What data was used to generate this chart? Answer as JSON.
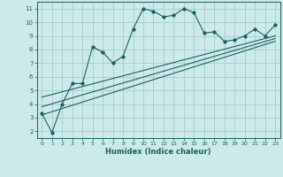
{
  "xlabel": "Humidex (Indice chaleur)",
  "bg_color": "#cceaea",
  "grid_color": "#aacccc",
  "line_color": "#1a6060",
  "xlim": [
    -0.5,
    23.5
  ],
  "ylim": [
    1.5,
    11.5
  ],
  "xticks": [
    0,
    1,
    2,
    3,
    4,
    5,
    6,
    7,
    8,
    9,
    10,
    11,
    12,
    13,
    14,
    15,
    16,
    17,
    18,
    19,
    20,
    21,
    22,
    23
  ],
  "yticks": [
    2,
    3,
    4,
    5,
    6,
    7,
    8,
    9,
    10,
    11
  ],
  "main_x": [
    0,
    1,
    2,
    3,
    4,
    5,
    6,
    7,
    8,
    9,
    10,
    11,
    12,
    13,
    14,
    15,
    16,
    17,
    18,
    19,
    20,
    21,
    22,
    23
  ],
  "main_y": [
    3.3,
    1.9,
    4.0,
    5.5,
    5.5,
    8.2,
    7.8,
    7.0,
    7.5,
    9.5,
    11.0,
    10.8,
    10.4,
    10.5,
    11.0,
    10.7,
    9.2,
    9.3,
    8.6,
    8.7,
    9.0,
    9.5,
    9.0,
    9.8
  ],
  "line1_x": [
    0,
    23
  ],
  "line1_y": [
    3.2,
    8.6
  ],
  "line2_x": [
    0,
    23
  ],
  "line2_y": [
    3.8,
    8.8
  ],
  "line3_x": [
    0,
    23
  ],
  "line3_y": [
    4.5,
    9.0
  ]
}
